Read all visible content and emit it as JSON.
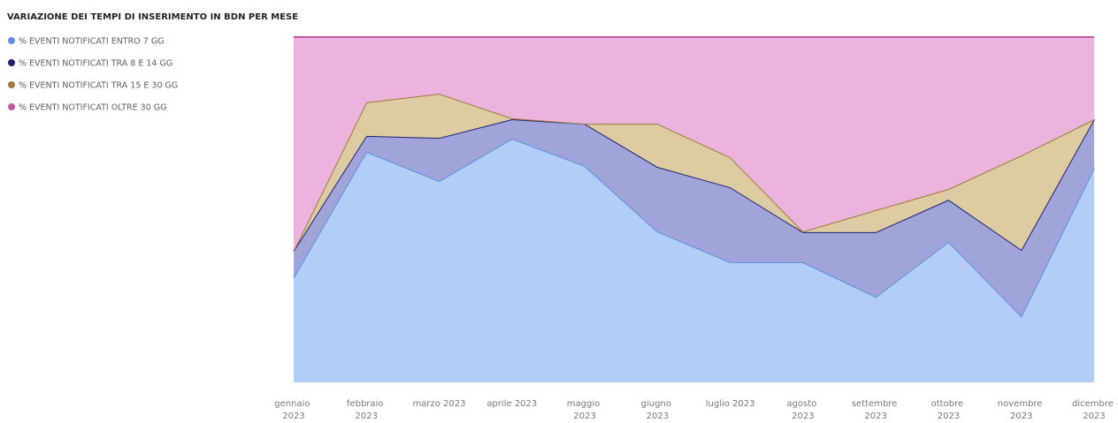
{
  "chart_data": {
    "type": "stacked_area",
    "title": "VARIAZIONE DEI TEMPI DI INSERIMENTO IN BDN PER MESE",
    "categories": [
      "gennaio 2023",
      "febbraio 2023",
      "marzo 2023",
      "aprile 2023",
      "maggio 2023",
      "giugno 2023",
      "luglio 2023",
      "agosto 2023",
      "settembre 2023",
      "ottobre 2023",
      "novembre 2023",
      "dicembre 2023"
    ],
    "ylim": [
      0,
      100
    ],
    "series": [
      {
        "name": "% EVENTI NOTIFICATI ENTRO 7 GG",
        "color": "#5b8ee6",
        "fill": "#b4cdf8",
        "values": [
          30.4,
          66.8,
          58.3,
          70.6,
          62.7,
          43.7,
          34.8,
          34.8,
          24.8,
          40.7,
          19.2,
          62.1
        ]
      },
      {
        "name": "%  EVENTI NOTIFICATI TRA 8 E 14 GG",
        "color": "#1c2170",
        "fill": "#a0a4d9",
        "values": [
          7.7,
          4.6,
          12.5,
          5.6,
          12.2,
          18.7,
          21.7,
          8.7,
          18.7,
          12.2,
          19.2,
          14.1
        ]
      },
      {
        "name": "% EVENTI NOTIFICATI TRA 15 E 30 GG",
        "color": "#9c7a3c",
        "fill": "#ddcba3",
        "values": [
          0,
          9.7,
          12.8,
          0.3,
          0,
          12.5,
          8.7,
          0.2,
          6.4,
          3.1,
          27.3,
          0
        ]
      },
      {
        "name": "%  EVENTI NOTIFICATI OLTRE 30 GG",
        "color": "#c2569f",
        "fill": "#ebb4dc",
        "values": [
          61.9,
          18.9,
          16.4,
          23.5,
          25.1,
          25.1,
          34.8,
          56.3,
          50.1,
          44.0,
          34.3,
          23.8
        ]
      }
    ]
  }
}
